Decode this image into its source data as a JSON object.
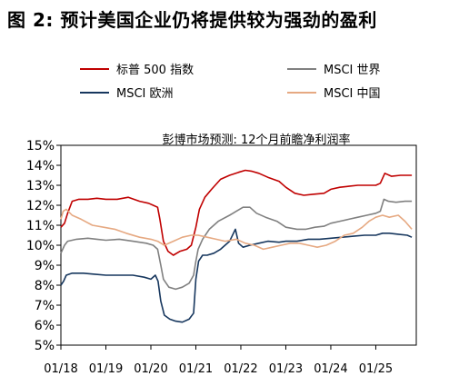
{
  "title": "图 2:  预计美国企业仍将提供较为强劲的盈利",
  "chart_data": {
    "type": "line",
    "subtitle": "彭博市场预测:  12个月前瞻净利润率",
    "y_axis": {
      "min": 5,
      "max": 15,
      "step": 1,
      "tick_labels": [
        "5%",
        "6%",
        "7%",
        "8%",
        "9%",
        "10%",
        "11%",
        "12%",
        "13%",
        "14%",
        "15%"
      ]
    },
    "x_axis": {
      "min": 2018.0,
      "max": 2025.9,
      "ticks": [
        2018.0,
        2019.0,
        2020.0,
        2021.0,
        2022.0,
        2023.0,
        2024.0,
        2025.0
      ],
      "tick_labels": [
        "01/18",
        "01/19",
        "01/20",
        "01/21",
        "01/22",
        "01/23",
        "01/24",
        "01/25"
      ]
    },
    "legend_placement": "top",
    "series": [
      {
        "name": "标普 500 指数",
        "color": "#c00000",
        "points": [
          [
            2018.0,
            10.9
          ],
          [
            2018.08,
            11.1
          ],
          [
            2018.15,
            11.6
          ],
          [
            2018.25,
            12.2
          ],
          [
            2018.4,
            12.3
          ],
          [
            2018.6,
            12.3
          ],
          [
            2018.8,
            12.35
          ],
          [
            2019.0,
            12.3
          ],
          [
            2019.25,
            12.3
          ],
          [
            2019.5,
            12.4
          ],
          [
            2019.75,
            12.2
          ],
          [
            2019.95,
            12.1
          ],
          [
            2020.05,
            12.0
          ],
          [
            2020.15,
            11.9
          ],
          [
            2020.2,
            11.3
          ],
          [
            2020.28,
            10.2
          ],
          [
            2020.38,
            9.7
          ],
          [
            2020.5,
            9.5
          ],
          [
            2020.65,
            9.7
          ],
          [
            2020.8,
            9.8
          ],
          [
            2020.9,
            10.0
          ],
          [
            2021.0,
            10.9
          ],
          [
            2021.08,
            11.8
          ],
          [
            2021.2,
            12.4
          ],
          [
            2021.35,
            12.8
          ],
          [
            2021.55,
            13.3
          ],
          [
            2021.75,
            13.5
          ],
          [
            2021.95,
            13.65
          ],
          [
            2022.1,
            13.75
          ],
          [
            2022.25,
            13.7
          ],
          [
            2022.4,
            13.6
          ],
          [
            2022.6,
            13.4
          ],
          [
            2022.85,
            13.2
          ],
          [
            2023.0,
            12.9
          ],
          [
            2023.2,
            12.6
          ],
          [
            2023.4,
            12.5
          ],
          [
            2023.6,
            12.55
          ],
          [
            2023.85,
            12.6
          ],
          [
            2024.0,
            12.8
          ],
          [
            2024.2,
            12.9
          ],
          [
            2024.4,
            12.95
          ],
          [
            2024.6,
            13.0
          ],
          [
            2024.8,
            13.0
          ],
          [
            2025.0,
            13.0
          ],
          [
            2025.1,
            13.1
          ],
          [
            2025.2,
            13.6
          ],
          [
            2025.35,
            13.45
          ],
          [
            2025.55,
            13.5
          ],
          [
            2025.8,
            13.5
          ]
        ]
      },
      {
        "name": "MSCI 世界",
        "color": "#808080",
        "points": [
          [
            2018.0,
            9.6
          ],
          [
            2018.08,
            10.0
          ],
          [
            2018.15,
            10.2
          ],
          [
            2018.35,
            10.3
          ],
          [
            2018.6,
            10.35
          ],
          [
            2018.8,
            10.3
          ],
          [
            2019.0,
            10.25
          ],
          [
            2019.3,
            10.3
          ],
          [
            2019.6,
            10.2
          ],
          [
            2019.9,
            10.1
          ],
          [
            2020.05,
            10.0
          ],
          [
            2020.15,
            9.8
          ],
          [
            2020.22,
            9.0
          ],
          [
            2020.28,
            8.3
          ],
          [
            2020.4,
            7.9
          ],
          [
            2020.55,
            7.8
          ],
          [
            2020.7,
            7.9
          ],
          [
            2020.85,
            8.1
          ],
          [
            2020.95,
            8.5
          ],
          [
            2021.0,
            9.2
          ],
          [
            2021.05,
            9.8
          ],
          [
            2021.15,
            10.3
          ],
          [
            2021.3,
            10.8
          ],
          [
            2021.5,
            11.2
          ],
          [
            2021.75,
            11.5
          ],
          [
            2021.9,
            11.7
          ],
          [
            2022.05,
            11.9
          ],
          [
            2022.2,
            11.9
          ],
          [
            2022.35,
            11.6
          ],
          [
            2022.55,
            11.4
          ],
          [
            2022.8,
            11.2
          ],
          [
            2023.0,
            10.9
          ],
          [
            2023.25,
            10.8
          ],
          [
            2023.45,
            10.8
          ],
          [
            2023.65,
            10.9
          ],
          [
            2023.85,
            10.95
          ],
          [
            2024.0,
            11.1
          ],
          [
            2024.2,
            11.2
          ],
          [
            2024.4,
            11.3
          ],
          [
            2024.6,
            11.4
          ],
          [
            2024.8,
            11.5
          ],
          [
            2025.0,
            11.6
          ],
          [
            2025.1,
            11.7
          ],
          [
            2025.18,
            12.3
          ],
          [
            2025.28,
            12.2
          ],
          [
            2025.45,
            12.15
          ],
          [
            2025.65,
            12.2
          ],
          [
            2025.8,
            12.2
          ]
        ]
      },
      {
        "name": "MSCI 欧洲",
        "color": "#17375e",
        "points": [
          [
            2018.0,
            8.0
          ],
          [
            2018.06,
            8.2
          ],
          [
            2018.12,
            8.5
          ],
          [
            2018.25,
            8.6
          ],
          [
            2018.5,
            8.6
          ],
          [
            2018.75,
            8.55
          ],
          [
            2019.0,
            8.5
          ],
          [
            2019.3,
            8.5
          ],
          [
            2019.6,
            8.5
          ],
          [
            2019.85,
            8.4
          ],
          [
            2020.0,
            8.3
          ],
          [
            2020.1,
            8.5
          ],
          [
            2020.16,
            8.2
          ],
          [
            2020.22,
            7.2
          ],
          [
            2020.3,
            6.5
          ],
          [
            2020.42,
            6.3
          ],
          [
            2020.55,
            6.2
          ],
          [
            2020.7,
            6.15
          ],
          [
            2020.85,
            6.3
          ],
          [
            2020.95,
            6.6
          ],
          [
            2021.0,
            8.3
          ],
          [
            2021.06,
            9.2
          ],
          [
            2021.15,
            9.5
          ],
          [
            2021.25,
            9.5
          ],
          [
            2021.4,
            9.6
          ],
          [
            2021.55,
            9.8
          ],
          [
            2021.75,
            10.2
          ],
          [
            2021.88,
            10.8
          ],
          [
            2021.95,
            10.1
          ],
          [
            2022.05,
            9.9
          ],
          [
            2022.2,
            10.0
          ],
          [
            2022.4,
            10.1
          ],
          [
            2022.6,
            10.2
          ],
          [
            2022.85,
            10.15
          ],
          [
            2023.0,
            10.2
          ],
          [
            2023.25,
            10.2
          ],
          [
            2023.5,
            10.3
          ],
          [
            2023.75,
            10.3
          ],
          [
            2024.0,
            10.35
          ],
          [
            2024.25,
            10.4
          ],
          [
            2024.5,
            10.45
          ],
          [
            2024.75,
            10.5
          ],
          [
            2025.0,
            10.5
          ],
          [
            2025.15,
            10.6
          ],
          [
            2025.3,
            10.6
          ],
          [
            2025.5,
            10.55
          ],
          [
            2025.7,
            10.5
          ],
          [
            2025.8,
            10.4
          ]
        ]
      },
      {
        "name": "MSCI 中国",
        "color": "#e6a982",
        "points": [
          [
            2018.0,
            11.3
          ],
          [
            2018.05,
            11.7
          ],
          [
            2018.12,
            11.8
          ],
          [
            2018.25,
            11.5
          ],
          [
            2018.45,
            11.3
          ],
          [
            2018.7,
            11.0
          ],
          [
            2018.95,
            10.9
          ],
          [
            2019.2,
            10.8
          ],
          [
            2019.45,
            10.6
          ],
          [
            2019.75,
            10.4
          ],
          [
            2020.0,
            10.3
          ],
          [
            2020.15,
            10.2
          ],
          [
            2020.3,
            10.0
          ],
          [
            2020.5,
            10.2
          ],
          [
            2020.7,
            10.4
          ],
          [
            2020.9,
            10.5
          ],
          [
            2021.05,
            10.5
          ],
          [
            2021.25,
            10.4
          ],
          [
            2021.45,
            10.3
          ],
          [
            2021.65,
            10.2
          ],
          [
            2021.9,
            10.3
          ],
          [
            2022.1,
            10.1
          ],
          [
            2022.3,
            10.0
          ],
          [
            2022.5,
            9.8
          ],
          [
            2022.7,
            9.9
          ],
          [
            2022.9,
            10.0
          ],
          [
            2023.1,
            10.1
          ],
          [
            2023.3,
            10.1
          ],
          [
            2023.5,
            10.0
          ],
          [
            2023.7,
            9.9
          ],
          [
            2023.9,
            10.0
          ],
          [
            2024.1,
            10.2
          ],
          [
            2024.3,
            10.5
          ],
          [
            2024.5,
            10.6
          ],
          [
            2024.7,
            10.9
          ],
          [
            2024.85,
            11.2
          ],
          [
            2025.0,
            11.4
          ],
          [
            2025.15,
            11.5
          ],
          [
            2025.3,
            11.4
          ],
          [
            2025.5,
            11.5
          ],
          [
            2025.65,
            11.2
          ],
          [
            2025.8,
            10.8
          ]
        ]
      }
    ]
  }
}
